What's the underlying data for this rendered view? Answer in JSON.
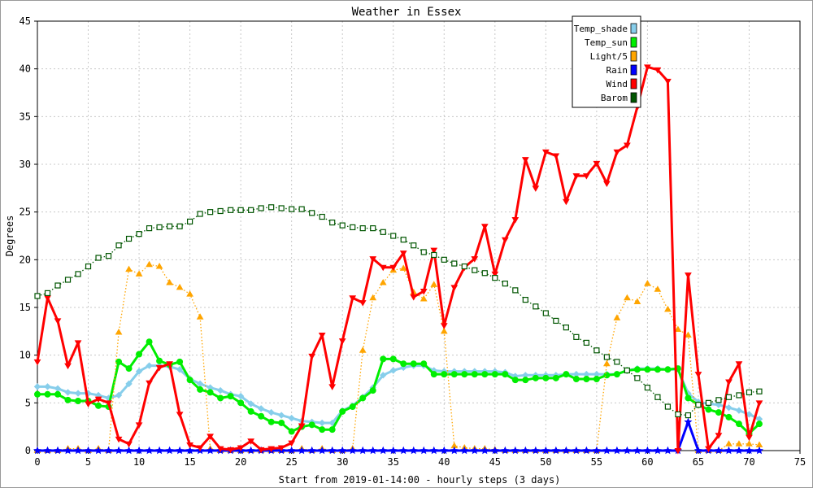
{
  "chart_data": {
    "type": "line",
    "title": "Weather in Essex",
    "xlabel": "Start from 2019-01-14:00 - hourly steps (3 days)",
    "ylabel": "Degrees",
    "xlim": [
      0,
      75
    ],
    "ylim": [
      0,
      45
    ],
    "x_ticks": [
      0,
      5,
      10,
      15,
      20,
      25,
      30,
      35,
      40,
      45,
      50,
      55,
      60,
      65,
      70,
      75
    ],
    "y_ticks": [
      0,
      5,
      10,
      15,
      20,
      25,
      30,
      35,
      40,
      45
    ],
    "grid": true,
    "legend_position": "top-right",
    "x": [
      0,
      1,
      2,
      3,
      4,
      5,
      6,
      7,
      8,
      9,
      10,
      11,
      12,
      13,
      14,
      15,
      16,
      17,
      18,
      19,
      20,
      21,
      22,
      23,
      24,
      25,
      26,
      27,
      28,
      29,
      30,
      31,
      32,
      33,
      34,
      35,
      36,
      37,
      38,
      39,
      40,
      41,
      42,
      43,
      44,
      45,
      46,
      47,
      48,
      49,
      50,
      51,
      52,
      53,
      54,
      55,
      56,
      57,
      58,
      59,
      60,
      61,
      62,
      63,
      64,
      65,
      66,
      67,
      68,
      69,
      70,
      71
    ],
    "series": [
      {
        "name": "Temp_shade",
        "color": "#87ceeb",
        "style": "thick",
        "marker": "diamond",
        "values": [
          6.7,
          6.7,
          6.5,
          6.1,
          6.0,
          6.0,
          5.8,
          5.5,
          5.8,
          7.0,
          8.3,
          8.9,
          8.9,
          8.8,
          8.5,
          7.5,
          7.0,
          6.6,
          6.3,
          5.9,
          5.7,
          4.9,
          4.4,
          4.0,
          3.7,
          3.4,
          3.1,
          3.0,
          2.9,
          2.9,
          4.2,
          4.7,
          5.6,
          6.6,
          7.9,
          8.4,
          8.7,
          8.9,
          8.9,
          8.4,
          8.3,
          8.3,
          8.3,
          8.3,
          8.3,
          8.3,
          8.2,
          7.8,
          7.9,
          7.9,
          7.9,
          7.9,
          8.0,
          8.0,
          8.0,
          8.0,
          8.0,
          8.0,
          8.4,
          8.6,
          8.6,
          8.6,
          8.5,
          8.5,
          6.0,
          5.1,
          4.9,
          4.8,
          4.5,
          4.2,
          3.8,
          3.3
        ]
      },
      {
        "name": "Temp_sun",
        "color": "#00ee00",
        "style": "thick",
        "marker": "circle",
        "values": [
          5.9,
          5.9,
          5.9,
          5.3,
          5.2,
          5.2,
          4.7,
          4.6,
          9.3,
          8.6,
          10.1,
          11.4,
          9.4,
          9.0,
          9.3,
          7.4,
          6.4,
          6.1,
          5.5,
          5.7,
          5.0,
          4.1,
          3.6,
          3.0,
          2.9,
          2.0,
          2.5,
          2.7,
          2.2,
          2.2,
          4.1,
          4.6,
          5.5,
          6.3,
          9.6,
          9.6,
          9.1,
          9.1,
          9.1,
          8.0,
          8.0,
          8.0,
          8.0,
          8.0,
          8.0,
          8.0,
          8.0,
          7.4,
          7.4,
          7.6,
          7.6,
          7.6,
          8.0,
          7.5,
          7.5,
          7.5,
          7.9,
          8.0,
          8.4,
          8.5,
          8.5,
          8.5,
          8.5,
          8.6,
          5.5,
          4.8,
          4.3,
          4.0,
          3.5,
          2.8,
          1.8,
          2.8
        ]
      },
      {
        "name": "Light/5",
        "color": "#ffa500",
        "style": "dotted",
        "marker": "triangle-up",
        "values": [
          0,
          0,
          0,
          0.2,
          0.2,
          0,
          0.2,
          0,
          12.4,
          19.0,
          18.5,
          19.5,
          19.3,
          17.6,
          17.1,
          16.4,
          14.0,
          0.2,
          0,
          0,
          0,
          0,
          0,
          0,
          0,
          0,
          0.2,
          0,
          0.2,
          0,
          0,
          0.2,
          10.5,
          16.0,
          17.6,
          18.9,
          19.1,
          16.6,
          15.9,
          17.4,
          12.5,
          0.5,
          0.3,
          0.2,
          0.2,
          0.1,
          0,
          0,
          0,
          0,
          0,
          0,
          0,
          0,
          0,
          0,
          9.1,
          13.9,
          16.0,
          15.6,
          17.5,
          16.9,
          14.8,
          12.7,
          12.1,
          0,
          0,
          0,
          0.7,
          0.7,
          0.7,
          0.6
        ]
      },
      {
        "name": "Rain",
        "color": "#0000ff",
        "style": "thick",
        "marker": "star",
        "values": [
          0,
          0,
          0,
          0,
          0,
          0,
          0,
          0,
          0,
          0,
          0,
          0,
          0,
          0,
          0,
          0,
          0,
          0,
          0,
          0,
          0,
          0,
          0,
          0,
          0,
          0,
          0,
          0,
          0,
          0,
          0,
          0,
          0,
          0,
          0,
          0,
          0,
          0,
          0,
          0,
          0,
          0,
          0,
          0,
          0,
          0,
          0,
          0,
          0,
          0,
          0,
          0,
          0,
          0,
          0,
          0,
          0,
          0,
          0,
          0,
          0,
          0,
          0,
          0,
          3.0,
          0,
          0,
          0,
          0,
          0,
          0,
          0
        ]
      },
      {
        "name": "Wind",
        "color": "#ff0000",
        "style": "thick",
        "marker": "triangle-down",
        "values": [
          9.3,
          16.0,
          13.6,
          8.9,
          11.3,
          4.9,
          5.4,
          5.0,
          1.2,
          0.7,
          2.7,
          7.1,
          8.7,
          9.1,
          3.8,
          0.6,
          0.3,
          1.5,
          0.2,
          0.1,
          0.3,
          1.0,
          0.1,
          0.2,
          0.3,
          0.8,
          2.6,
          9.9,
          12.1,
          6.7,
          11.5,
          16.0,
          15.5,
          20.1,
          19.2,
          19.2,
          20.7,
          16.1,
          16.7,
          21.0,
          13.1,
          17.1,
          19.2,
          20.1,
          23.5,
          18.5,
          22.1,
          24.2,
          30.5,
          27.5,
          31.3,
          30.9,
          26.1,
          28.8,
          28.8,
          30.1,
          28.0,
          31.3,
          32.0,
          36.0,
          40.2,
          39.9,
          38.7,
          0.0,
          18.4,
          8.0,
          0.2,
          1.6,
          7.2,
          9.1,
          1.4,
          5.0
        ]
      },
      {
        "name": "Barom",
        "color": "#005500",
        "style": "dotted",
        "marker": "square",
        "values": [
          16.2,
          16.5,
          17.3,
          17.9,
          18.5,
          19.3,
          20.2,
          20.4,
          21.5,
          22.2,
          22.7,
          23.3,
          23.4,
          23.5,
          23.5,
          24.0,
          24.8,
          25.0,
          25.1,
          25.2,
          25.2,
          25.2,
          25.4,
          25.5,
          25.4,
          25.3,
          25.3,
          24.9,
          24.5,
          23.9,
          23.6,
          23.4,
          23.3,
          23.3,
          22.9,
          22.5,
          22.1,
          21.5,
          20.8,
          20.5,
          20.0,
          19.6,
          19.3,
          18.9,
          18.6,
          18.1,
          17.5,
          16.8,
          15.8,
          15.1,
          14.4,
          13.6,
          12.9,
          11.9,
          11.3,
          10.5,
          9.8,
          9.3,
          8.4,
          7.6,
          6.6,
          5.6,
          4.6,
          3.8,
          3.7,
          4.8,
          5.0,
          5.3,
          5.6,
          5.8,
          6.1,
          6.2
        ]
      }
    ]
  }
}
